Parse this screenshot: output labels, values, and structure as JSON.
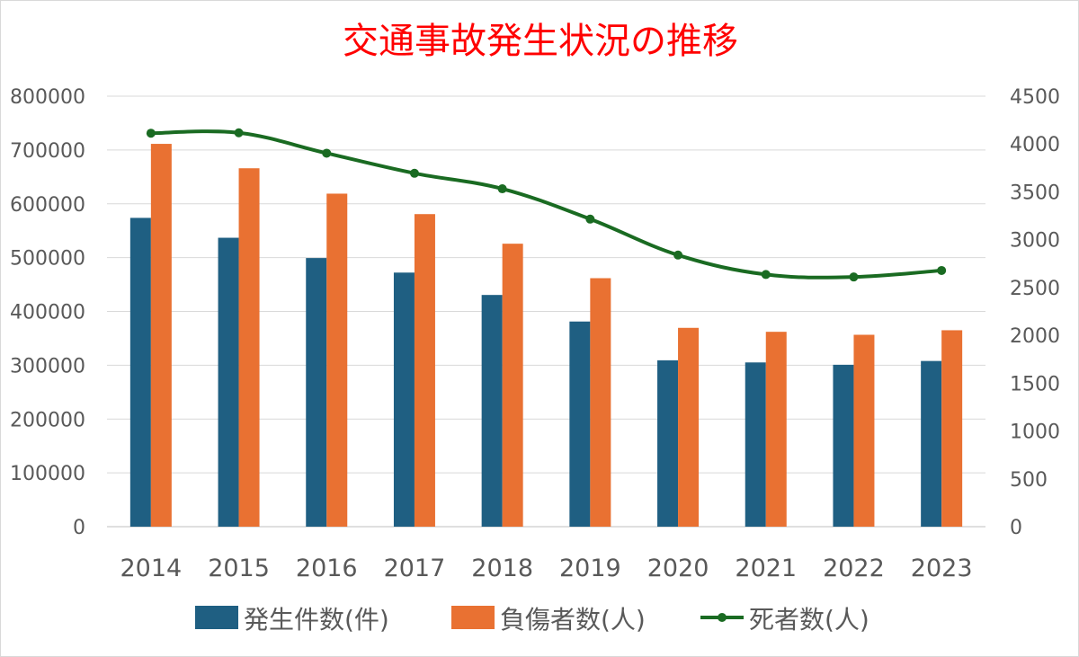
{
  "chart_data": {
    "type": "bar",
    "title": "交通事故発生状況の推移",
    "categories": [
      "2014",
      "2015",
      "2016",
      "2017",
      "2018",
      "2019",
      "2020",
      "2021",
      "2022",
      "2023"
    ],
    "series": [
      {
        "name": "発生件数(件)",
        "type": "bar",
        "axis": "left",
        "color": "#1f5f82",
        "values": [
          573842,
          536899,
          499201,
          472165,
          430601,
          381237,
          309178,
          305196,
          300839,
          307911
        ]
      },
      {
        "name": "負傷者数(人)",
        "type": "bar",
        "axis": "left",
        "color": "#e97132",
        "values": [
          711374,
          666023,
          618853,
          580850,
          525846,
          461775,
          369476,
          362131,
          356601,
          365027
        ]
      },
      {
        "name": "死者数(人)",
        "type": "line",
        "axis": "right",
        "color": "#1a6b22",
        "values": [
          4113,
          4117,
          3904,
          3694,
          3532,
          3215,
          2839,
          2636,
          2610,
          2678
        ]
      }
    ],
    "y_left": {
      "min": 0,
      "max": 800000,
      "step": 100000,
      "ticks": [
        "0",
        "100000",
        "200000",
        "300000",
        "400000",
        "500000",
        "600000",
        "700000",
        "800000"
      ]
    },
    "y_right": {
      "min": 0,
      "max": 4500,
      "step": 500,
      "ticks": [
        "0",
        "500",
        "1000",
        "1500",
        "2000",
        "2500",
        "3000",
        "3500",
        "4000",
        "4500"
      ]
    },
    "grid": true,
    "legend_position": "bottom"
  }
}
